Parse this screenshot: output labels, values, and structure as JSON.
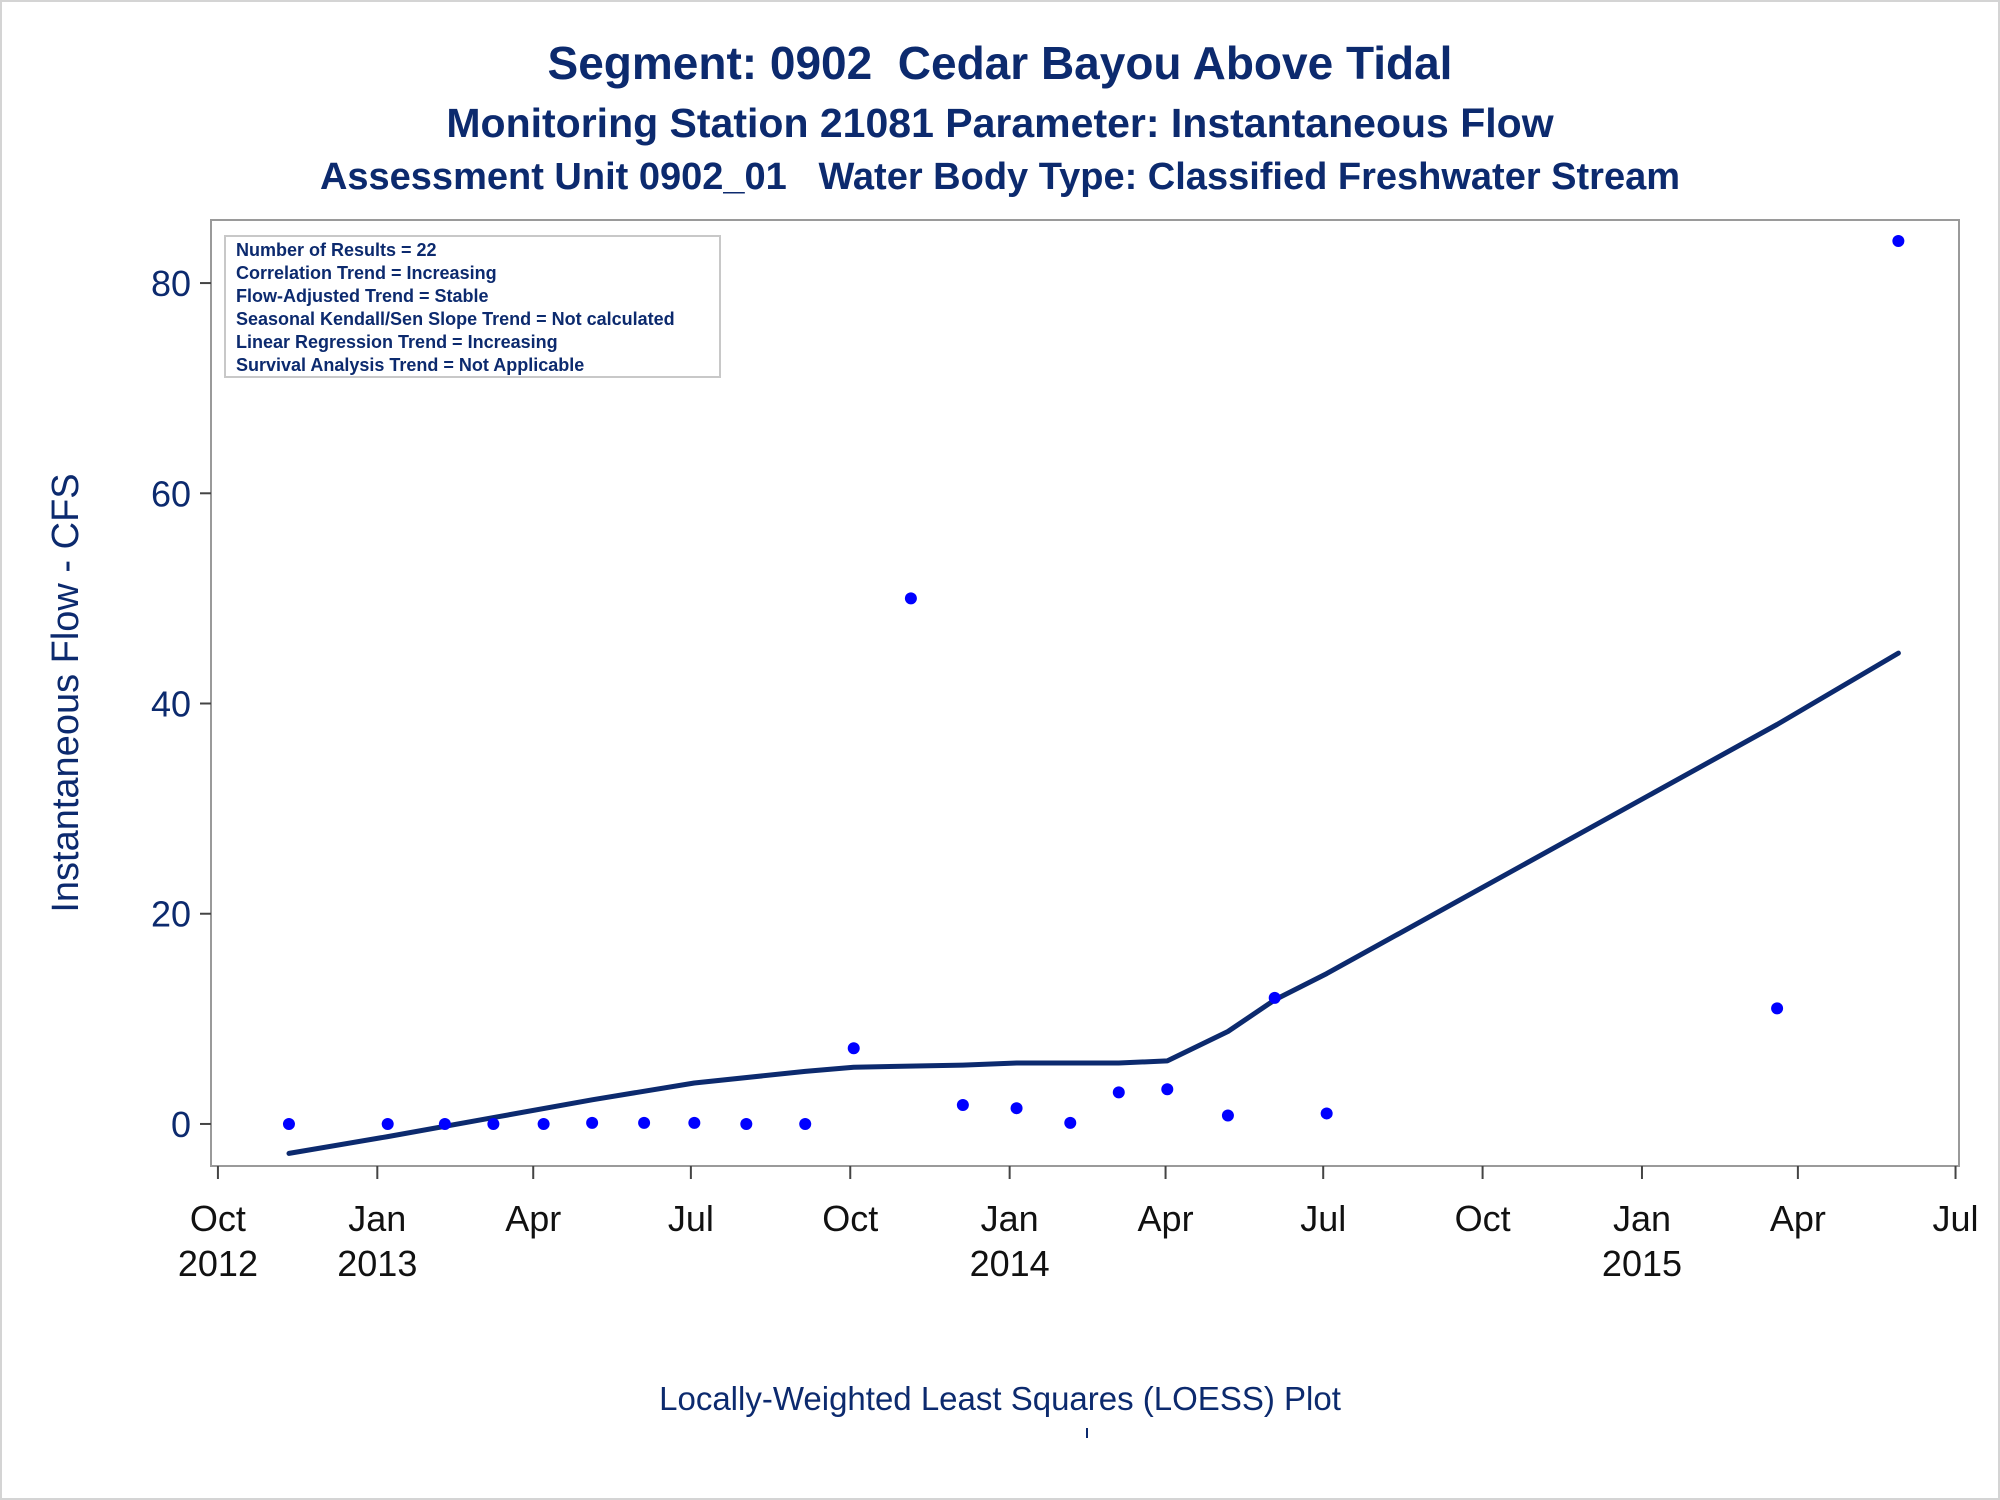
{
  "titles": {
    "line1": "Segment: 0902  Cedar Bayou Above Tidal",
    "line2": "Monitoring Station 21081 Parameter: Instantaneous Flow",
    "line3": "Assessment Unit 0902_01   Water Body Type: Classified Freshwater Stream"
  },
  "footnote": "Locally-Weighted Least Squares (LOESS) Plot",
  "colors": {
    "text": "#0c2a6e",
    "points": "#0000ff",
    "trend": "#0c2a6e",
    "axis": "#9a9a9a"
  },
  "chart_data": {
    "type": "scatter",
    "ylabel": "Instantaneous Flow - CFS",
    "xlabel": "",
    "ylim": [
      -4,
      86
    ],
    "xlim": [
      "2012-09-27",
      "2015-07-03"
    ],
    "y_ticks": [
      0,
      20,
      40,
      60,
      80
    ],
    "x_ticks": [
      {
        "date": "2012-10-01",
        "label": [
          "Oct",
          "2012"
        ]
      },
      {
        "date": "2013-01-01",
        "label": [
          "Jan",
          "2013"
        ]
      },
      {
        "date": "2013-04-01",
        "label": [
          "Apr"
        ]
      },
      {
        "date": "2013-07-01",
        "label": [
          "Jul"
        ]
      },
      {
        "date": "2013-10-01",
        "label": [
          "Oct"
        ]
      },
      {
        "date": "2014-01-01",
        "label": [
          "Jan",
          "2014"
        ]
      },
      {
        "date": "2014-04-01",
        "label": [
          "Apr"
        ]
      },
      {
        "date": "2014-07-01",
        "label": [
          "Jul"
        ]
      },
      {
        "date": "2014-10-01",
        "label": [
          "Oct"
        ]
      },
      {
        "date": "2015-01-01",
        "label": [
          "Jan",
          "2015"
        ]
      },
      {
        "date": "2015-04-01",
        "label": [
          "Apr"
        ]
      },
      {
        "date": "2015-07-01",
        "label": [
          "Jul"
        ]
      }
    ],
    "legend_box": [
      "Number of Results = 22",
      "Correlation Trend = Increasing",
      "Flow-Adjusted Trend = Stable",
      "Seasonal Kendall/Sen Slope Trend = Not calculated",
      "Linear Regression Trend = Increasing",
      "Survival Analysis Trend = Not Applicable"
    ],
    "legend_placement": "top-left",
    "series": [
      {
        "kind": "points",
        "points": [
          {
            "x": "2012-11-11",
            "y": 0
          },
          {
            "x": "2013-01-07",
            "y": 0
          },
          {
            "x": "2013-02-09",
            "y": 0
          },
          {
            "x": "2013-03-09",
            "y": 0
          },
          {
            "x": "2013-04-07",
            "y": 0
          },
          {
            "x": "2013-05-05",
            "y": 0.1
          },
          {
            "x": "2013-06-04",
            "y": 0.1
          },
          {
            "x": "2013-07-03",
            "y": 0.1
          },
          {
            "x": "2013-08-02",
            "y": 0
          },
          {
            "x": "2013-09-05",
            "y": 0
          },
          {
            "x": "2013-10-03",
            "y": 7.2
          },
          {
            "x": "2013-11-05",
            "y": 50
          },
          {
            "x": "2013-12-05",
            "y": 1.8
          },
          {
            "x": "2014-01-05",
            "y": 1.5
          },
          {
            "x": "2014-02-05",
            "y": 0.1
          },
          {
            "x": "2014-03-05",
            "y": 3
          },
          {
            "x": "2014-04-02",
            "y": 3.3
          },
          {
            "x": "2014-05-07",
            "y": 0.8
          },
          {
            "x": "2014-06-03",
            "y": 12
          },
          {
            "x": "2014-07-03",
            "y": 1
          },
          {
            "x": "2015-03-20",
            "y": 11
          },
          {
            "x": "2015-05-29",
            "y": 84
          }
        ]
      },
      {
        "kind": "loess",
        "points": [
          {
            "x": "2012-11-11",
            "y": -2.8
          },
          {
            "x": "2013-01-07",
            "y": -1.2
          },
          {
            "x": "2013-03-09",
            "y": 0.6
          },
          {
            "x": "2013-05-05",
            "y": 2.3
          },
          {
            "x": "2013-07-03",
            "y": 3.9
          },
          {
            "x": "2013-09-05",
            "y": 5
          },
          {
            "x": "2013-10-03",
            "y": 5.4
          },
          {
            "x": "2013-12-05",
            "y": 5.6
          },
          {
            "x": "2014-01-05",
            "y": 5.8
          },
          {
            "x": "2014-02-05",
            "y": 5.8
          },
          {
            "x": "2014-03-05",
            "y": 5.8
          },
          {
            "x": "2014-04-02",
            "y": 6
          },
          {
            "x": "2014-05-07",
            "y": 8.8
          },
          {
            "x": "2014-06-03",
            "y": 11.8
          },
          {
            "x": "2014-07-03",
            "y": 14.3
          },
          {
            "x": "2015-03-20",
            "y": 38
          },
          {
            "x": "2015-05-29",
            "y": 44.8
          }
        ]
      }
    ]
  }
}
